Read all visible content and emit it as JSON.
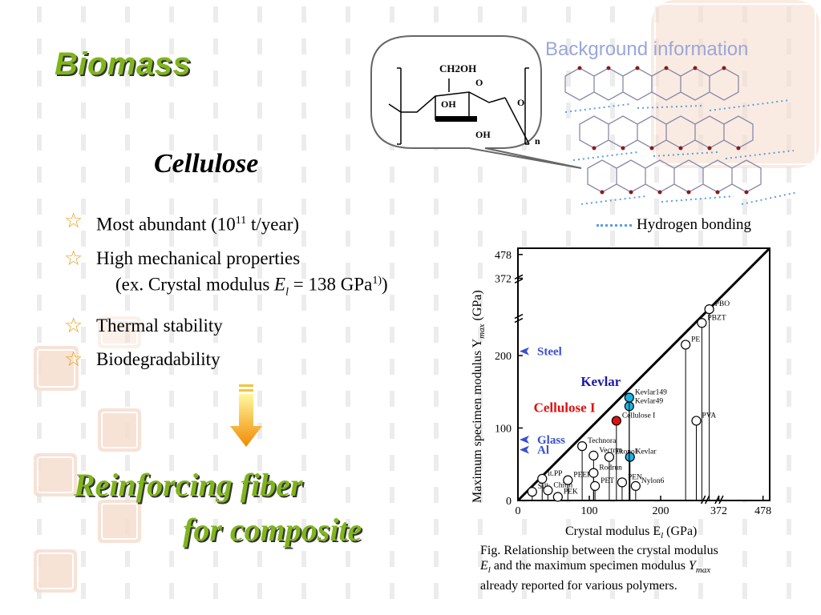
{
  "slide": {
    "title": "Biomass",
    "subtitle": "Cellulose",
    "background_info": "Background information",
    "bullets": [
      {
        "text": "Most abundant (10",
        "sup": "11",
        "tail": " t/year)"
      },
      {
        "text": "High mechanical properties",
        "sub_text": "(ex. Crystal modulus ",
        "sub_var": "E",
        "sub_var_sub": "l",
        "sub_tail": " = 138 GPa",
        "sub_sup": "1)",
        "sub_end": ")"
      },
      {
        "text": "Thermal stability"
      },
      {
        "text": "Biodegradability"
      }
    ],
    "reinforcing_line1": "Reinforcing fiber",
    "reinforcing_line2": "for composite",
    "hydrogen_bonding": "Hydrogen bonding",
    "structure_labels": {
      "ch2oh": "CH2OH",
      "o_ring": "O",
      "oh1": "OH",
      "oh2": "OH",
      "o_link": "O",
      "n": "n"
    },
    "caption_line1": "Fig.  Relationship between the crystal modulus",
    "caption_line2a": "E",
    "caption_line2b": "l",
    "caption_line2c": " and the maximum specimen modulus ",
    "caption_line2d": "Y",
    "caption_line2e": "max",
    "caption_line3": "already reported for various polymers.",
    "colors": {
      "accent_green": "#7fb51a",
      "star": "#e8a21c",
      "kevlar_text": "#1a1aa8",
      "cellulose_text": "#e01010",
      "steel_text": "#3a4fd0",
      "cyan_point": "#19b4e6",
      "red_point": "#e01010",
      "bg_info": "#9aa7d8"
    }
  },
  "chart_data": {
    "type": "scatter",
    "xlabel": "Crystal modulus E",
    "xlabel_sub": "l",
    "xlabel_unit": " (GPa)",
    "ylabel": "Maximum specimen modulus Y",
    "ylabel_sub": "max",
    "ylabel_unit": " (GPa)",
    "x_ticks": [
      "0",
      "100",
      "200",
      "372",
      "478"
    ],
    "y_ticks": [
      "0",
      "100",
      "200",
      "372",
      "478"
    ],
    "xlim": [
      0,
      478
    ],
    "ylim": [
      0,
      478
    ],
    "axis_breaks": {
      "x": [
        280,
        360
      ],
      "y": [
        250,
        360
      ]
    },
    "points": [
      {
        "label": "Silk",
        "x": 20,
        "y": 12,
        "fill": "white"
      },
      {
        "label": "it.PP",
        "x": 34,
        "y": 30,
        "fill": "white"
      },
      {
        "label": "Chitin",
        "x": 42,
        "y": 14,
        "fill": "white"
      },
      {
        "label": "PEK",
        "x": 56,
        "y": 5,
        "fill": "white"
      },
      {
        "label": "PEEK",
        "x": 70,
        "y": 28,
        "fill": "white"
      },
      {
        "label": "Technora",
        "x": 90,
        "y": 75,
        "fill": "white"
      },
      {
        "label": "Vectran",
        "x": 106,
        "y": 62,
        "fill": "white"
      },
      {
        "label": "Rodrun",
        "x": 106,
        "y": 38,
        "fill": "white"
      },
      {
        "label": "PET",
        "x": 108,
        "y": 20,
        "fill": "white"
      },
      {
        "label": "Ekonol",
        "x": 128,
        "y": 60,
        "fill": "white"
      },
      {
        "label": "PEN",
        "x": 146,
        "y": 25,
        "fill": "white"
      },
      {
        "label": "Nylon6",
        "x": 165,
        "y": 20,
        "fill": "white"
      },
      {
        "label": "Kevlar",
        "x": 157,
        "y": 60,
        "fill": "cyan"
      },
      {
        "label": "Kevlar49",
        "x": 156,
        "y": 130,
        "fill": "cyan"
      },
      {
        "label": "Kevlar149",
        "x": 156,
        "y": 142,
        "fill": "cyan"
      },
      {
        "label": "Cellulose I",
        "x": 138,
        "y": 110,
        "fill": "red"
      },
      {
        "label": "PVA",
        "x": 250,
        "y": 110,
        "fill": "white"
      },
      {
        "label": "PE",
        "x": 235,
        "y": 215,
        "fill": "white"
      },
      {
        "label": "PBZT",
        "x": 280,
        "y": 245,
        "fill": "white"
      },
      {
        "label": "PBO",
        "x": 320,
        "y": 280,
        "fill": "white"
      }
    ],
    "reference_lines": [
      {
        "label": "Steel",
        "y": 206
      },
      {
        "label": "Glass",
        "y": 84
      },
      {
        "label": "Al",
        "y": 70
      }
    ],
    "big_labels": [
      {
        "label": "Kevlar",
        "color": "#1a1aa8"
      },
      {
        "label": "Cellulose I",
        "color": "#e01010"
      }
    ]
  }
}
